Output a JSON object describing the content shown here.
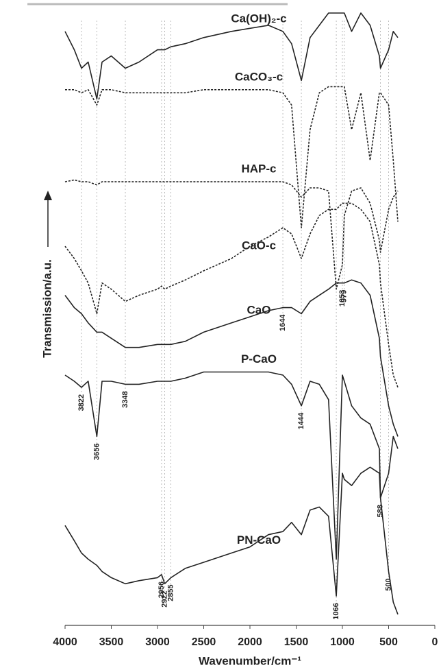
{
  "chart_data": {
    "type": "line",
    "xlabel": "Wavenumber/cm⁻¹",
    "ylabel": "Transmission/a.u.",
    "xlim": [
      4000,
      0
    ],
    "xticks": [
      4000,
      3500,
      3000,
      2500,
      2000,
      1500,
      1000,
      500,
      0
    ],
    "ylim": [
      0,
      100
    ],
    "x": [
      4000,
      3900,
      3822,
      3750,
      3656,
      3600,
      3500,
      3348,
      3200,
      3000,
      2956,
      2922,
      2855,
      2700,
      2500,
      2200,
      2000,
      1800,
      1644,
      1550,
      1444,
      1350,
      1250,
      1150,
      1066,
      1000,
      979,
      900,
      800,
      700,
      600,
      588,
      500,
      450,
      400
    ],
    "series": [
      {
        "name": "Ca(OH)₂-c",
        "color": "#222222",
        "dashed": false,
        "values": [
          96,
          93,
          90,
          91,
          85,
          91,
          92,
          90,
          91,
          93,
          93,
          93,
          93.5,
          94,
          95,
          96,
          96.5,
          97,
          96,
          94,
          88,
          95,
          97,
          99,
          99,
          99,
          99,
          96,
          99,
          97,
          92,
          90,
          93,
          96,
          95
        ]
      },
      {
        "name": "CaCO₃-c",
        "color": "#222222",
        "dashed": true,
        "values": [
          86.5,
          86.5,
          86,
          86.5,
          84,
          86.5,
          86.5,
          86,
          86,
          86,
          86,
          86,
          86,
          86,
          86.5,
          86.5,
          86.5,
          86.5,
          86,
          84,
          64,
          80,
          86,
          87,
          87,
          87,
          87,
          80,
          86,
          75,
          86,
          86,
          84,
          75,
          65
        ]
      },
      {
        "name": "HAP-c",
        "color": "#222222",
        "dashed": true,
        "values": [
          71.5,
          71.8,
          71.5,
          71.5,
          71,
          71.5,
          71.5,
          71.5,
          71.5,
          71.5,
          71.5,
          71.5,
          71.5,
          71.5,
          71.5,
          71.5,
          71.5,
          71.5,
          71.5,
          71,
          69,
          70.5,
          70.5,
          70,
          54,
          58,
          66,
          70,
          70.5,
          68,
          62,
          60,
          67,
          69,
          70
        ]
      },
      {
        "name": "CaO-c",
        "color": "#222222",
        "dashed": true,
        "values": [
          61,
          59,
          57,
          55,
          50,
          55,
          54,
          52,
          53,
          54,
          54.5,
          54,
          54.5,
          55.5,
          57,
          59,
          61,
          62.5,
          64,
          63,
          59,
          63,
          66,
          67,
          67,
          68,
          68,
          68,
          67,
          65,
          58,
          55,
          45,
          40,
          38
        ]
      },
      {
        "name": "CaO",
        "color": "#222222",
        "dashed": false,
        "values": [
          53,
          51,
          50,
          48.5,
          47,
          47,
          46,
          44.5,
          44.5,
          45,
          45,
          45,
          45,
          45.5,
          47,
          48.5,
          49.5,
          50.5,
          51,
          51,
          50,
          52,
          53,
          54,
          55,
          55,
          55,
          55.5,
          55,
          53,
          46,
          43,
          35,
          32,
          30
        ]
      },
      {
        "name": "P-CaO",
        "color": "#222222",
        "dashed": false,
        "values": [
          40,
          39,
          38,
          39,
          30,
          39,
          39,
          38.5,
          38.5,
          39,
          39,
          39,
          39,
          39.5,
          40.5,
          40.5,
          40.5,
          40.5,
          40,
          38.5,
          35,
          39,
          38.5,
          36,
          10,
          40,
          39,
          35,
          33,
          32,
          28,
          20,
          24,
          30,
          28
        ]
      },
      {
        "name": "PN-CaO",
        "color": "#222222",
        "dashed": false,
        "values": [
          15.5,
          13,
          11,
          10,
          9,
          8,
          7,
          6,
          6.5,
          7,
          7.5,
          6,
          7,
          8.5,
          9.5,
          11,
          12,
          14,
          14.5,
          16,
          14,
          18,
          18.5,
          17,
          4,
          24,
          23,
          22,
          24,
          25,
          24,
          20,
          8,
          3,
          1
        ]
      }
    ],
    "annotations": [
      {
        "label": "3822",
        "x": 3822,
        "series": 5
      },
      {
        "label": "3656",
        "x": 3656,
        "series": 5
      },
      {
        "label": "3348",
        "x": 3348,
        "series": 5
      },
      {
        "label": "1644",
        "x": 1644,
        "series": 4
      },
      {
        "label": "1444",
        "x": 1444,
        "series": 5
      },
      {
        "label": "1053",
        "x": 1000,
        "series": 4
      },
      {
        "label": "979",
        "x": 979,
        "series": 4
      },
      {
        "label": "2956",
        "x": 2956,
        "series": 6
      },
      {
        "label": "2922",
        "x": 2922,
        "series": 6
      },
      {
        "label": "2855",
        "x": 2855,
        "series": 6
      },
      {
        "label": "1066",
        "x": 1066,
        "series": 6
      },
      {
        "label": "588",
        "x": 588,
        "series": 6
      },
      {
        "label": "500",
        "x": 500,
        "series": 6
      }
    ]
  }
}
